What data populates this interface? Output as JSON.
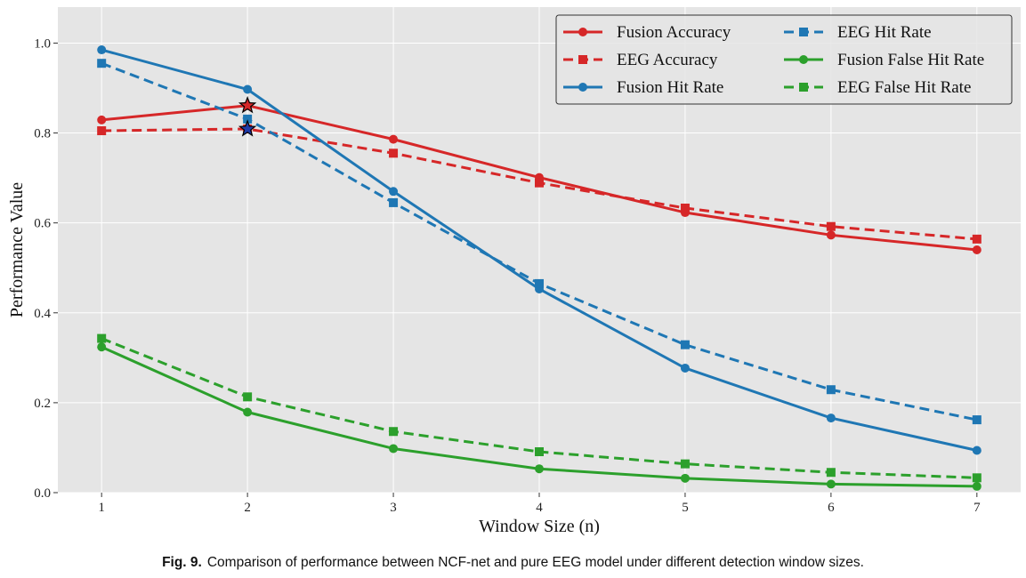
{
  "caption": {
    "label": "Fig. 9.",
    "text": "Comparison of performance between NCF-net and pure EEG model under different detection window sizes."
  },
  "chart_data": {
    "type": "line",
    "xlabel": "Window Size (n)",
    "ylabel": "Performance Value",
    "x": [
      1,
      2,
      3,
      4,
      5,
      6,
      7
    ],
    "xlim": [
      0.7,
      7.3
    ],
    "ylim": [
      0.0,
      1.08
    ],
    "xticks": [
      "1",
      "2",
      "3",
      "4",
      "5",
      "6",
      "7"
    ],
    "yticks": [
      "0.0",
      "0.2",
      "0.4",
      "0.6",
      "0.8",
      "1.0"
    ],
    "grid": true,
    "legend_position": "top-right",
    "background": "#e5e5e5",
    "series": [
      {
        "name": "Fusion Accuracy",
        "color": "#d62728",
        "dash": "solid",
        "marker": "circle",
        "values": [
          0.829,
          0.861,
          0.786,
          0.701,
          0.623,
          0.573,
          0.54
        ]
      },
      {
        "name": "EEG Accuracy",
        "color": "#d62728",
        "dash": "dashed",
        "marker": "square",
        "values": [
          0.805,
          0.809,
          0.755,
          0.689,
          0.633,
          0.592,
          0.564
        ]
      },
      {
        "name": "Fusion Hit Rate",
        "color": "#1f77b4",
        "dash": "solid",
        "marker": "circle",
        "values": [
          0.985,
          0.897,
          0.67,
          0.453,
          0.277,
          0.166,
          0.094
        ]
      },
      {
        "name": "EEG Hit Rate",
        "color": "#1f77b4",
        "dash": "dashed",
        "marker": "square",
        "values": [
          0.955,
          0.831,
          0.645,
          0.465,
          0.329,
          0.229,
          0.162
        ]
      },
      {
        "name": "Fusion False Hit Rate",
        "color": "#2ca02c",
        "dash": "solid",
        "marker": "circle",
        "values": [
          0.324,
          0.179,
          0.098,
          0.053,
          0.032,
          0.019,
          0.014
        ]
      },
      {
        "name": "EEG False Hit Rate",
        "color": "#2ca02c",
        "dash": "dashed",
        "marker": "square",
        "values": [
          0.343,
          0.213,
          0.136,
          0.091,
          0.064,
          0.045,
          0.033
        ]
      }
    ],
    "annotations": [
      {
        "type": "star",
        "x": 2,
        "y": 0.861,
        "color": "#d62728"
      },
      {
        "type": "star",
        "x": 2,
        "y": 0.809,
        "color": "#1f3aa8"
      }
    ]
  }
}
